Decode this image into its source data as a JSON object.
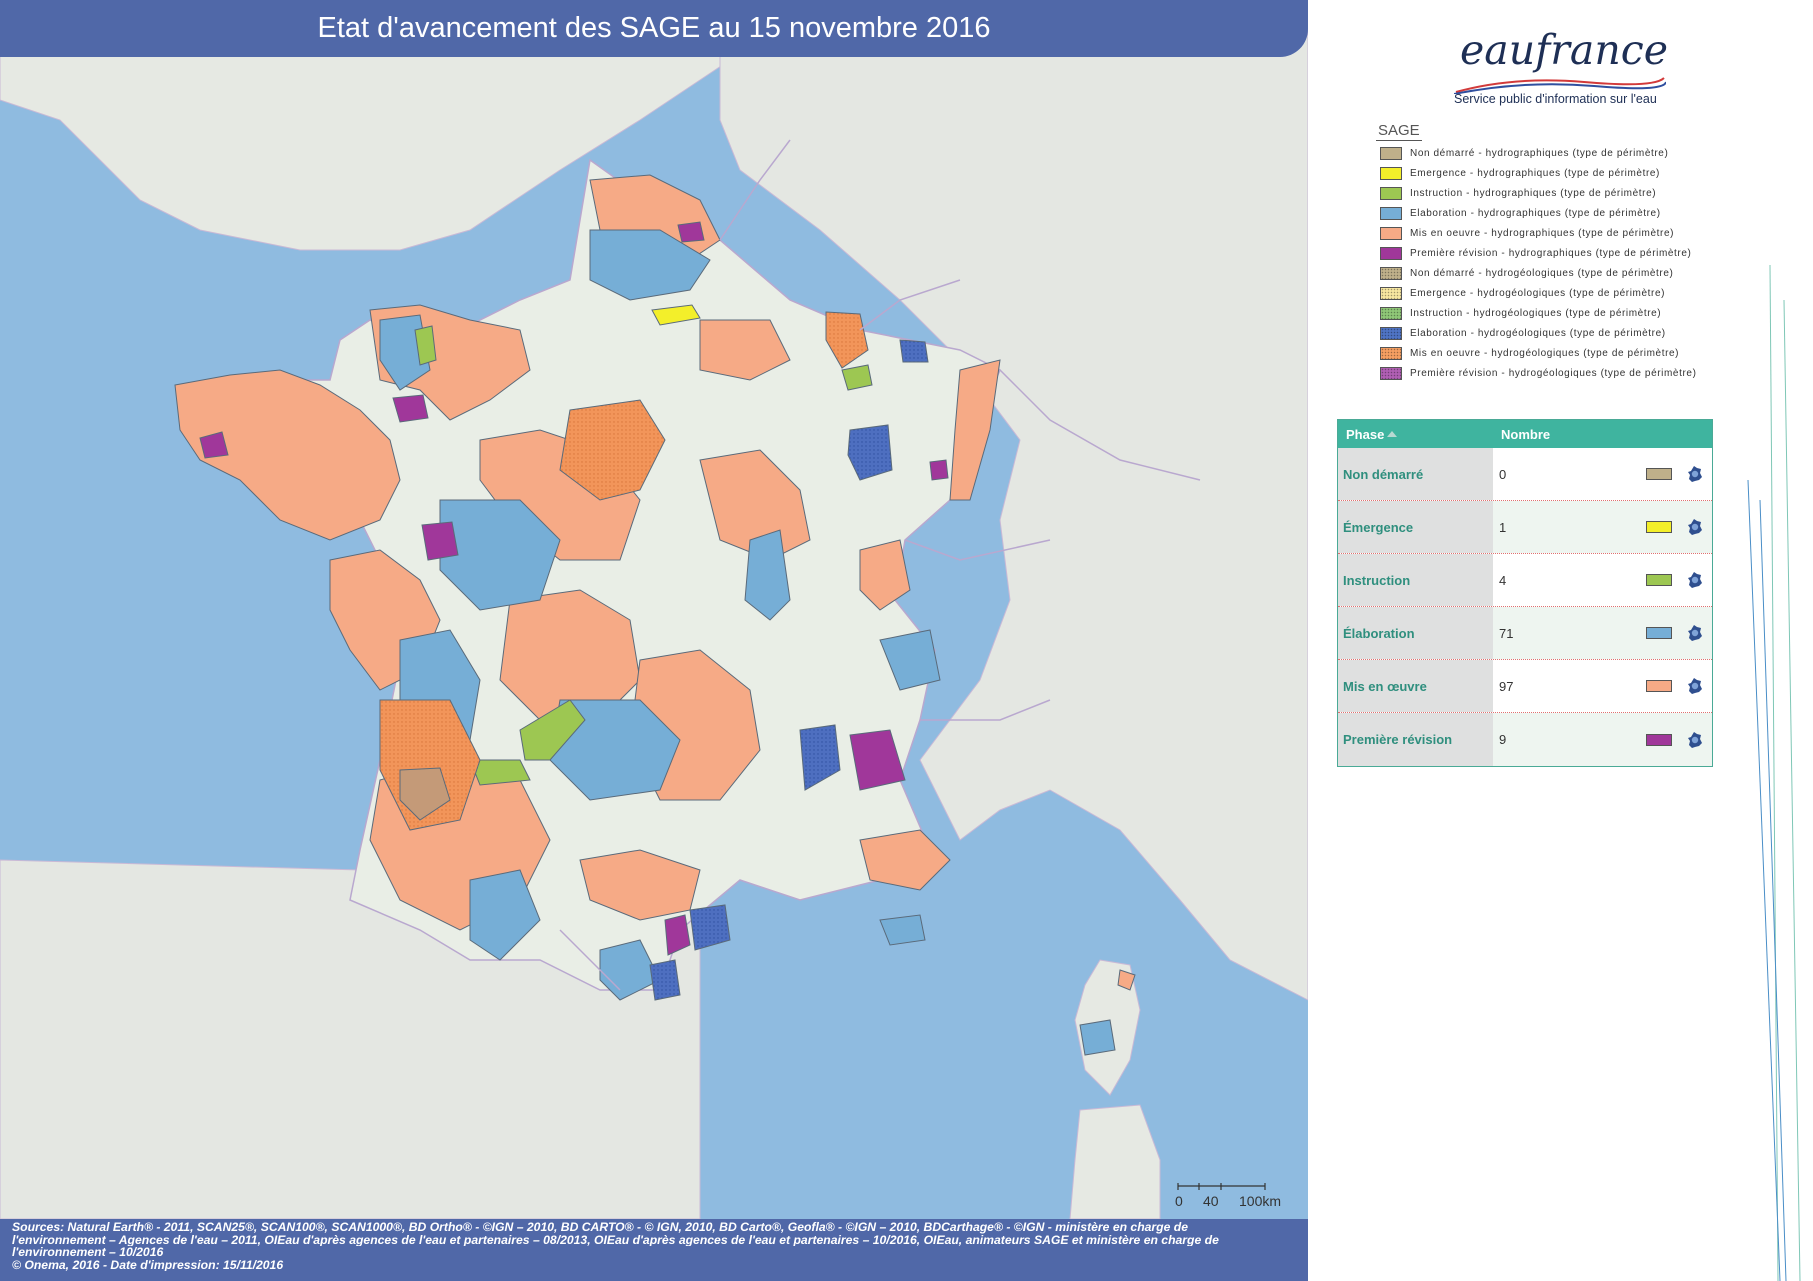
{
  "title": "Etat d'avancement des SAGE au 15 novembre 2016",
  "logo": {
    "name": "eaufrance",
    "tagline": "Service public d'information sur l'eau"
  },
  "legend": {
    "title": "SAGE",
    "items": [
      {
        "label": "Non démarré - hydrographiques (type de périmètre)",
        "color": "#bfb08a",
        "pattern": "solid"
      },
      {
        "label": "Emergence - hydrographiques (type de périmètre)",
        "color": "#f3ef2a",
        "pattern": "solid"
      },
      {
        "label": "Instruction - hydrographiques (type de périmètre)",
        "color": "#9dc752",
        "pattern": "solid"
      },
      {
        "label": "Elaboration - hydrographiques (type de périmètre)",
        "color": "#76aed6",
        "pattern": "solid"
      },
      {
        "label": "Mis en oeuvre - hydrographiques (type de périmètre)",
        "color": "#f6aa86",
        "pattern": "solid"
      },
      {
        "label": "Première révision - hydrographiques (type de périmètre)",
        "color": "#a0379a",
        "pattern": "solid"
      },
      {
        "label": "Non démarré - hydrogéologiques (type de périmètre)",
        "color": "#bfb08a",
        "pattern": "dotted"
      },
      {
        "label": "Emergence - hydrogéologiques (type de périmètre)",
        "color": "#f7e7a0",
        "pattern": "dotted"
      },
      {
        "label": "Instruction - hydrogéologiques (type de périmètre)",
        "color": "#8fc777",
        "pattern": "dotted"
      },
      {
        "label": "Elaboration - hydrogéologiques (type de périmètre)",
        "color": "#4f74c4",
        "pattern": "dotted"
      },
      {
        "label": "Mis en oeuvre - hydrogéologiques (type de périmètre)",
        "color": "#f59f62",
        "pattern": "dotted"
      },
      {
        "label": "Première révision - hydrogéologiques (type de périmètre)",
        "color": "#b05fb3",
        "pattern": "dotted"
      }
    ]
  },
  "phase_table": {
    "col_phase": "Phase",
    "col_count": "Nombre",
    "rows": [
      {
        "phase": "Non démarré",
        "count": "0",
        "color": "#bfb08a"
      },
      {
        "phase": "Émergence",
        "count": "1",
        "color": "#f3ef2a"
      },
      {
        "phase": "Instruction",
        "count": "4",
        "color": "#9dc752"
      },
      {
        "phase": "Élaboration",
        "count": "71",
        "color": "#76aed6"
      },
      {
        "phase": "Mis en œuvre",
        "count": "97",
        "color": "#f6aa86"
      },
      {
        "phase": "Première révision",
        "count": "9",
        "color": "#a0379a"
      }
    ]
  },
  "scale": {
    "ticks": [
      "0",
      "40",
      "100km"
    ]
  },
  "footer": {
    "line1": "Sources: Natural Earth® - 2011, SCAN25®, SCAN100®, SCAN1000®, BD Ortho® - ©IGN – 2010, BD CARTO® - © IGN, 2010, BD Carto®, Geofla® - ©IGN – 2010, BDCarthage® - ©IGN - ministère en charge de",
    "line2": "l'environnement – Agences de l'eau – 2011, OIEau d'après agences de l'eau et partenaires – 08/2013, OIEau d'après agences de l'eau et partenaires – 10/2016, OIEau, animateurs SAGE et ministère en charge de",
    "line3": "l'environnement – 10/2016",
    "line4": "© Onema, 2016 - Date d'impression: 15/11/2016"
  },
  "colors": {
    "sea": "#8fbbe0",
    "land_france": "#e9eee6",
    "land_neighbors": "#e4e7e2",
    "title_bar": "#5068a8",
    "table_header": "#3fb49f"
  }
}
